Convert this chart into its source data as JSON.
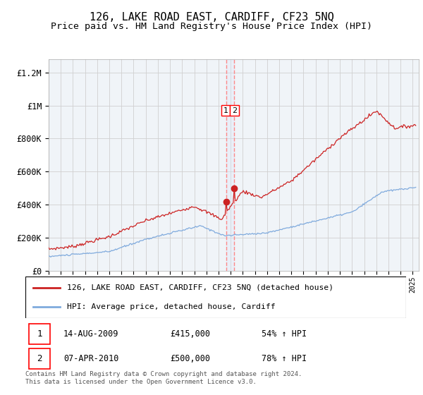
{
  "title": "126, LAKE ROAD EAST, CARDIFF, CF23 5NQ",
  "subtitle": "Price paid vs. HM Land Registry's House Price Index (HPI)",
  "title_fontsize": 11,
  "subtitle_fontsize": 9.5,
  "ylabel_ticks": [
    "£0",
    "£200K",
    "£400K",
    "£600K",
    "£800K",
    "£1M",
    "£1.2M"
  ],
  "ytick_values": [
    0,
    200000,
    400000,
    600000,
    800000,
    1000000,
    1200000
  ],
  "ylim": [
    0,
    1280000
  ],
  "xlim_start": 1995.0,
  "xlim_end": 2025.5,
  "hpi_color": "#7faadd",
  "price_color": "#cc2222",
  "grid_color": "#d0d0d0",
  "bg_color": "#f0f4f8",
  "transaction1_x": 2009.617,
  "transaction1_y": 415000,
  "transaction1_label": "1",
  "transaction2_x": 2010.267,
  "transaction2_y": 500000,
  "transaction2_label": "2",
  "vline_color": "#ff8888",
  "shade_color": "#dde8f8",
  "legend_label_red": "126, LAKE ROAD EAST, CARDIFF, CF23 5NQ (detached house)",
  "legend_label_blue": "HPI: Average price, detached house, Cardiff",
  "annotation_rows": [
    {
      "num": "1",
      "date": "14-AUG-2009",
      "price": "£415,000",
      "pct": "54% ↑ HPI"
    },
    {
      "num": "2",
      "date": "07-APR-2010",
      "price": "£500,000",
      "pct": "78% ↑ HPI"
    }
  ],
  "footnote": "Contains HM Land Registry data © Crown copyright and database right 2024.\nThis data is licensed under the Open Government Licence v3.0."
}
